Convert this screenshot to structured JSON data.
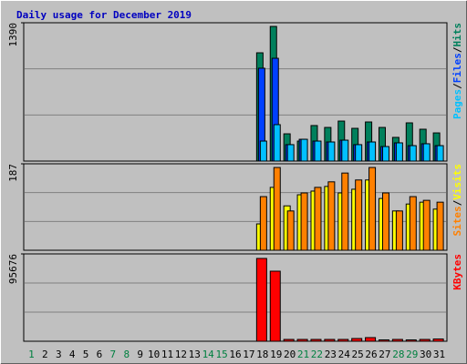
{
  "chart_data": [
    {
      "type": "bar",
      "title": "Daily usage for December 2019",
      "ylim": [
        0,
        1390
      ],
      "yticks": [
        1390
      ],
      "legend_separator": "/",
      "series": [
        {
          "name": "Hits",
          "color": "#00805c",
          "values": [
            0,
            0,
            0,
            0,
            0,
            0,
            0,
            0,
            0,
            0,
            0,
            0,
            0,
            0,
            0,
            0,
            0,
            1088,
            1353,
            274,
            201,
            357,
            338,
            402,
            329,
            393,
            338,
            238,
            384,
            320,
            283
          ]
        },
        {
          "name": "Files",
          "color": "#0040ff",
          "values": [
            0,
            0,
            0,
            0,
            0,
            0,
            0,
            0,
            0,
            0,
            0,
            0,
            0,
            0,
            0,
            0,
            0,
            933,
            1033,
            165,
            219,
            201,
            192,
            210,
            165,
            192,
            146,
            183,
            155,
            174,
            155
          ]
        },
        {
          "name": "Pages",
          "color": "#00c0ff",
          "values": [
            0,
            0,
            0,
            0,
            0,
            0,
            0,
            0,
            0,
            0,
            0,
            0,
            0,
            0,
            0,
            0,
            0,
            201,
            366,
            165,
            219,
            201,
            192,
            210,
            165,
            192,
            146,
            183,
            155,
            174,
            155
          ]
        }
      ]
    },
    {
      "type": "bar",
      "ylim": [
        0,
        187
      ],
      "yticks": [
        187
      ],
      "legend_separator": "/",
      "series": [
        {
          "name": "Visits",
          "color": "#ffff00",
          "values": [
            0,
            0,
            0,
            0,
            0,
            0,
            0,
            0,
            0,
            0,
            0,
            0,
            0,
            0,
            0,
            0,
            0,
            57,
            136,
            96,
            120,
            128,
            138,
            124,
            132,
            152,
            112,
            85,
            100,
            104,
            89
          ]
        },
        {
          "name": "Sites",
          "color": "#ff8000",
          "values": [
            0,
            0,
            0,
            0,
            0,
            0,
            0,
            0,
            0,
            0,
            0,
            0,
            0,
            0,
            0,
            0,
            0,
            116,
            179,
            85,
            124,
            136,
            148,
            167,
            152,
            179,
            124,
            85,
            116,
            108,
            104
          ]
        }
      ]
    },
    {
      "type": "bar",
      "ylim": [
        0,
        95676
      ],
      "yticks": [
        95676
      ],
      "categories": [
        "1",
        "2",
        "3",
        "4",
        "5",
        "6",
        "7",
        "8",
        "9",
        "10",
        "11",
        "12",
        "13",
        "14",
        "15",
        "16",
        "17",
        "18",
        "19",
        "20",
        "21",
        "22",
        "23",
        "24",
        "25",
        "26",
        "27",
        "28",
        "29",
        "30",
        "31"
      ],
      "highlight": [
        0,
        6,
        7,
        13,
        14,
        20,
        21,
        27,
        28
      ],
      "highlight_color": "#008040",
      "series": [
        {
          "name": "KBytes",
          "color": "#ff0000",
          "values": [
            0,
            0,
            0,
            0,
            0,
            0,
            0,
            0,
            0,
            0,
            0,
            0,
            0,
            0,
            0,
            0,
            0,
            90692,
            76740,
            2000,
            2000,
            2000,
            2000,
            2000,
            3000,
            4000,
            1500,
            2000,
            1500,
            2000,
            2500
          ]
        }
      ]
    }
  ]
}
